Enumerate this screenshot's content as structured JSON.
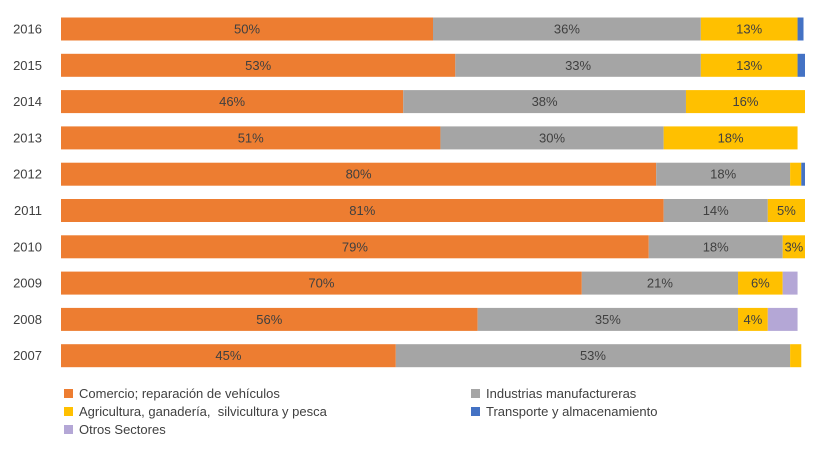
{
  "chart_data": {
    "type": "bar",
    "orientation": "horizontal",
    "stacked": true,
    "percent": true,
    "categories": [
      "2016",
      "2015",
      "2014",
      "2013",
      "2012",
      "2011",
      "2010",
      "2009",
      "2008",
      "2007"
    ],
    "series": [
      {
        "name": "Comercio; reparación de vehículos",
        "color": "#ED7D31",
        "values": [
          50,
          53,
          46,
          51,
          80,
          81,
          79,
          70,
          56,
          45
        ],
        "labels": [
          "50%",
          "53%",
          "46%",
          "51%",
          "80%",
          "81%",
          "79%",
          "70%",
          "56%",
          "45%"
        ]
      },
      {
        "name": "Industrias manufactureras",
        "color": "#A5A5A5",
        "values": [
          36,
          33,
          38,
          30,
          18,
          14,
          18,
          21,
          35,
          53
        ],
        "labels": [
          "36%",
          "33%",
          "38%",
          "30%",
          "18%",
          "14%",
          "18%",
          "21%",
          "35%",
          "53%"
        ]
      },
      {
        "name": "Agricultura, ganadería,  silvicultura y pesca",
        "color": "#FFC000",
        "values": [
          13,
          13,
          16,
          18,
          1.5,
          5,
          3,
          6,
          4,
          1.5
        ],
        "labels": [
          "13%",
          "13%",
          "16%",
          "18%",
          "",
          "5%",
          "3%",
          "6%",
          "4%",
          ""
        ]
      },
      {
        "name": "Transporte y almacenamiento",
        "color": "#4472C4",
        "values": [
          0.8,
          1,
          0.8,
          0,
          0.7,
          0.8,
          0,
          0,
          0,
          0
        ],
        "labels": [
          "",
          "",
          "",
          "",
          "",
          "",
          "",
          "",
          "",
          ""
        ]
      },
      {
        "name": "Otros Sectores",
        "color": "#B4A7D6",
        "values": [
          0,
          0,
          0,
          0,
          0,
          0,
          0,
          2,
          4,
          0
        ],
        "labels": [
          "",
          "",
          "",
          "",
          "",
          "",
          "",
          "",
          "",
          ""
        ]
      }
    ],
    "xlim": [
      0,
      100
    ],
    "grid": false,
    "legend_position": "bottom"
  }
}
